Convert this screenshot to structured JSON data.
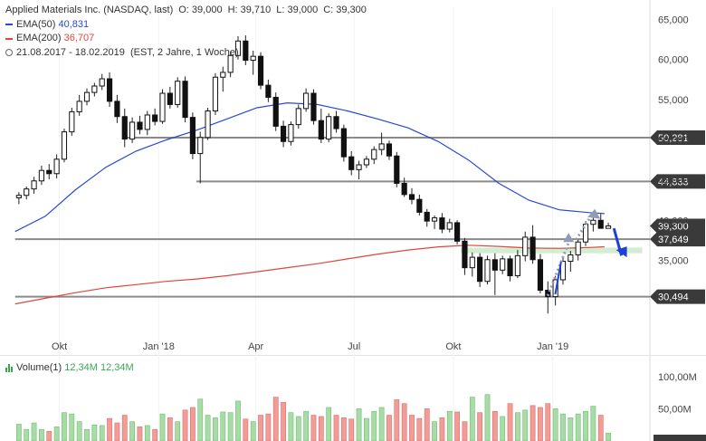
{
  "legend": {
    "title": "Applied Materials Inc. (NASDAQ, last)",
    "ohlc": {
      "o_label": "O:",
      "o": "39,000",
      "h_label": "H:",
      "h": "39,710",
      "l_label": "L:",
      "l": "39,000",
      "c_label": "C:",
      "c": "39,300"
    },
    "ema50_label": "EMA(50)",
    "ema50_value": "40,831",
    "ema200_label": "EMA(200)",
    "ema200_value": "36,707",
    "range": "21.08.2017 - 18.02.2019",
    "settings": "(EST, 2 Jahre, 1 Woche)"
  },
  "volume_legend": {
    "label": "Volume(1)",
    "value1": "12,34M",
    "value2": "12,34M"
  },
  "colors": {
    "up": "#3aa655",
    "down": "#e0463c",
    "ema50": "#2a47d6",
    "ema200": "#e0463c",
    "hline": "#8a8a8a",
    "vol_up": "#a9dba8",
    "vol_down": "#f29b97",
    "axis_label_bg": "#3a3a3a",
    "zone": "#c9ebc9",
    "arrow_blue": "#1f3fd6",
    "arrow_gray": "#8f9bb8"
  },
  "chart_data": {
    "type": "candlestick",
    "title": "Applied Materials Inc. (NASDAQ, last)",
    "x_start": "21.08.2017",
    "x_end": "18.02.2019",
    "interval": "1 Woche",
    "y_axis": {
      "ticks": [
        "65,000",
        "60,000",
        "55,000",
        "50,000",
        "45,000",
        "40,000",
        "35,000"
      ],
      "tick_values": [
        65,
        60,
        55,
        50,
        45,
        40,
        35
      ],
      "ylim": [
        25.5,
        66.5
      ],
      "position": "right"
    },
    "x_axis": {
      "ticks": [
        "Okt",
        "Jan '18",
        "Apr",
        "Jul",
        "Okt",
        "Jan '19"
      ],
      "tick_dates": [
        "2017-10-01",
        "2018-01-01",
        "2018-04-01",
        "2018-07-01",
        "2018-10-01",
        "2019-01-01"
      ]
    },
    "horizontal_levels": [
      {
        "value": 50.281,
        "label": "50,281",
        "from_date": "2017-12-01"
      },
      {
        "value": 44.833,
        "label": "44,833",
        "from_date": "2018-02-05"
      },
      {
        "value": 37.649,
        "label": "37,649",
        "from_date": "2017-08-21"
      },
      {
        "value": 30.494,
        "label": "30,494",
        "from_date": "2017-08-21"
      }
    ],
    "last_price": {
      "value": 39.3,
      "label": "39,300"
    },
    "support_zone": {
      "from": 35.9,
      "to": 36.6,
      "from_date": "2018-10-08",
      "to_date": "2019-03-25"
    },
    "candles": [
      [
        "2017-08-21",
        42.8,
        43.5,
        42.0,
        43.1
      ],
      [
        "2017-08-28",
        43.1,
        44.2,
        42.6,
        43.9
      ],
      [
        "2017-09-04",
        43.9,
        45.4,
        43.3,
        44.9
      ],
      [
        "2017-09-11",
        44.9,
        46.8,
        44.4,
        46.2
      ],
      [
        "2017-09-18",
        46.2,
        47.0,
        45.1,
        45.8
      ],
      [
        "2017-09-25",
        45.8,
        48.2,
        45.2,
        47.6
      ],
      [
        "2017-10-02",
        47.6,
        51.4,
        47.2,
        51.0
      ],
      [
        "2017-10-09",
        51.0,
        54.0,
        50.5,
        53.5
      ],
      [
        "2017-10-16",
        53.5,
        55.6,
        53.0,
        54.8
      ],
      [
        "2017-10-23",
        54.8,
        56.4,
        54.3,
        55.9
      ],
      [
        "2017-10-30",
        55.9,
        57.1,
        55.4,
        56.7
      ],
      [
        "2017-11-06",
        56.7,
        58.2,
        56.2,
        57.6
      ],
      [
        "2017-11-13",
        57.6,
        58.4,
        54.1,
        54.8
      ],
      [
        "2017-11-20",
        54.8,
        55.6,
        52.1,
        52.9
      ],
      [
        "2017-11-27",
        52.9,
        53.9,
        49.1,
        50.1
      ],
      [
        "2017-12-04",
        50.1,
        52.8,
        49.6,
        52.2
      ],
      [
        "2017-12-11",
        52.2,
        53.0,
        50.7,
        51.3
      ],
      [
        "2017-12-18",
        51.3,
        53.6,
        50.6,
        53.1
      ],
      [
        "2017-12-25",
        53.1,
        53.9,
        51.8,
        52.3
      ],
      [
        "2018-01-01",
        52.3,
        56.3,
        52.0,
        55.8
      ],
      [
        "2018-01-08",
        55.8,
        56.6,
        53.9,
        54.4
      ],
      [
        "2018-01-15",
        54.4,
        57.8,
        54.0,
        57.3
      ],
      [
        "2018-01-22",
        57.3,
        57.9,
        52.2,
        52.8
      ],
      [
        "2018-01-29",
        52.8,
        53.4,
        47.6,
        48.3
      ],
      [
        "2018-02-05",
        48.3,
        51.0,
        44.6,
        50.3
      ],
      [
        "2018-02-12",
        50.3,
        54.0,
        50.0,
        53.6
      ],
      [
        "2018-02-19",
        53.6,
        58.3,
        53.1,
        57.8
      ],
      [
        "2018-02-26",
        57.8,
        59.1,
        56.0,
        58.4
      ],
      [
        "2018-03-05",
        58.4,
        61.0,
        57.8,
        60.5
      ],
      [
        "2018-03-12",
        60.5,
        62.9,
        60.0,
        62.3
      ],
      [
        "2018-03-19",
        62.3,
        63.0,
        59.3,
        59.9
      ],
      [
        "2018-03-26",
        59.9,
        61.1,
        58.1,
        60.4
      ],
      [
        "2018-04-02",
        60.4,
        60.9,
        56.3,
        56.8
      ],
      [
        "2018-04-09",
        56.8,
        57.5,
        54.7,
        55.3
      ],
      [
        "2018-04-16",
        55.3,
        55.9,
        51.1,
        51.7
      ],
      [
        "2018-04-23",
        51.7,
        52.4,
        49.1,
        49.8
      ],
      [
        "2018-04-30",
        49.8,
        52.3,
        49.3,
        51.9
      ],
      [
        "2018-05-07",
        51.9,
        54.4,
        51.4,
        53.9
      ],
      [
        "2018-05-14",
        53.9,
        56.4,
        53.5,
        55.8
      ],
      [
        "2018-05-21",
        55.8,
        56.3,
        51.9,
        52.4
      ],
      [
        "2018-05-28",
        52.4,
        53.9,
        49.6,
        50.1
      ],
      [
        "2018-06-04",
        50.1,
        53.3,
        49.7,
        52.9
      ],
      [
        "2018-06-11",
        52.9,
        53.6,
        50.9,
        51.4
      ],
      [
        "2018-06-18",
        51.4,
        51.9,
        47.3,
        47.9
      ],
      [
        "2018-06-25",
        47.9,
        48.6,
        45.6,
        46.3
      ],
      [
        "2018-07-02",
        46.3,
        47.4,
        45.1,
        46.9
      ],
      [
        "2018-07-09",
        46.9,
        48.0,
        46.5,
        47.6
      ],
      [
        "2018-07-16",
        47.6,
        49.2,
        47.0,
        48.8
      ],
      [
        "2018-07-23",
        48.8,
        50.9,
        48.1,
        49.5
      ],
      [
        "2018-07-30",
        49.5,
        49.9,
        47.5,
        48.0
      ],
      [
        "2018-08-06",
        48.0,
        48.5,
        44.1,
        44.6
      ],
      [
        "2018-08-13",
        44.6,
        45.3,
        42.9,
        43.2
      ],
      [
        "2018-08-20",
        43.2,
        44.0,
        42.0,
        42.6
      ],
      [
        "2018-08-27",
        42.6,
        43.2,
        40.6,
        41.0
      ],
      [
        "2018-09-03",
        41.0,
        41.4,
        39.2,
        39.9
      ],
      [
        "2018-09-10",
        39.9,
        40.6,
        38.9,
        40.3
      ],
      [
        "2018-09-17",
        40.3,
        40.9,
        38.4,
        38.9
      ],
      [
        "2018-09-24",
        38.9,
        40.2,
        38.5,
        39.7
      ],
      [
        "2018-10-01",
        39.7,
        40.0,
        37.0,
        37.4
      ],
      [
        "2018-10-08",
        37.4,
        37.8,
        33.2,
        34.1
      ],
      [
        "2018-10-15",
        34.1,
        36.0,
        33.0,
        35.4
      ],
      [
        "2018-10-22",
        35.4,
        35.9,
        31.7,
        32.4
      ],
      [
        "2018-10-29",
        32.4,
        35.6,
        32.0,
        35.1
      ],
      [
        "2018-11-05",
        35.1,
        35.9,
        30.7,
        33.8
      ],
      [
        "2018-11-12",
        33.8,
        35.6,
        33.3,
        35.2
      ],
      [
        "2018-11-19",
        35.2,
        35.6,
        32.4,
        33.1
      ],
      [
        "2018-11-26",
        33.1,
        36.3,
        32.8,
        35.6
      ],
      [
        "2018-12-03",
        35.6,
        38.6,
        34.9,
        37.9
      ],
      [
        "2018-12-10",
        37.9,
        39.4,
        34.6,
        35.1
      ],
      [
        "2018-12-17",
        35.1,
        35.8,
        30.9,
        31.3
      ],
      [
        "2018-12-24",
        31.3,
        32.4,
        28.4,
        30.5
      ],
      [
        "2018-12-31",
        30.5,
        33.1,
        29.4,
        32.6
      ],
      [
        "2019-01-07",
        32.6,
        35.4,
        32.0,
        34.9
      ],
      [
        "2019-01-14",
        34.9,
        36.2,
        33.6,
        35.7
      ],
      [
        "2019-01-21",
        35.7,
        37.6,
        35.0,
        37.3
      ],
      [
        "2019-01-28",
        37.3,
        39.9,
        36.8,
        39.5
      ],
      [
        "2019-02-04",
        39.5,
        40.4,
        38.6,
        40.0
      ],
      [
        "2019-02-11",
        40.0,
        40.8,
        39.2,
        39.0
      ],
      [
        "2019-02-18",
        39.0,
        39.71,
        39.0,
        39.3
      ]
    ],
    "ema50": [
      [
        "2017-08-21",
        38.6
      ],
      [
        "2017-09-18",
        40.5
      ],
      [
        "2017-10-16",
        43.8
      ],
      [
        "2017-11-13",
        46.6
      ],
      [
        "2017-12-11",
        48.6
      ],
      [
        "2018-01-08",
        50.0
      ],
      [
        "2018-02-05",
        51.2
      ],
      [
        "2018-03-05",
        52.6
      ],
      [
        "2018-04-02",
        54.0
      ],
      [
        "2018-04-30",
        54.6
      ],
      [
        "2018-05-28",
        54.4
      ],
      [
        "2018-06-25",
        53.6
      ],
      [
        "2018-07-23",
        52.6
      ],
      [
        "2018-08-20",
        51.5
      ],
      [
        "2018-09-17",
        49.8
      ],
      [
        "2018-10-15",
        47.5
      ],
      [
        "2018-11-12",
        44.6
      ],
      [
        "2018-12-10",
        42.5
      ],
      [
        "2019-01-07",
        41.3
      ],
      [
        "2019-02-04",
        40.95
      ],
      [
        "2019-02-18",
        40.831
      ]
    ],
    "ema200": [
      [
        "2017-08-21",
        29.6
      ],
      [
        "2017-09-18",
        30.3
      ],
      [
        "2017-10-16",
        31.0
      ],
      [
        "2017-11-13",
        31.6
      ],
      [
        "2017-12-11",
        32.0
      ],
      [
        "2018-01-08",
        32.4
      ],
      [
        "2018-02-05",
        32.7
      ],
      [
        "2018-03-05",
        33.1
      ],
      [
        "2018-04-02",
        33.6
      ],
      [
        "2018-04-30",
        34.1
      ],
      [
        "2018-05-28",
        34.6
      ],
      [
        "2018-06-25",
        35.2
      ],
      [
        "2018-07-23",
        35.8
      ],
      [
        "2018-08-20",
        36.3
      ],
      [
        "2018-09-17",
        36.7
      ],
      [
        "2018-10-15",
        36.9
      ],
      [
        "2018-11-12",
        36.75
      ],
      [
        "2018-12-10",
        36.55
      ],
      [
        "2019-01-07",
        36.5
      ],
      [
        "2019-02-04",
        36.62
      ],
      [
        "2019-02-18",
        36.707
      ]
    ],
    "volume": {
      "label": "Volume(1)",
      "ticks": [
        "100,00M",
        "50,00M"
      ],
      "tick_values": [
        100,
        50
      ],
      "ylim": [
        0,
        125
      ],
      "values": [
        26,
        18,
        28,
        18,
        15,
        22,
        44,
        42,
        30,
        18,
        25,
        24,
        35,
        28,
        40,
        30,
        22,
        24,
        18,
        42,
        36,
        30,
        48,
        52,
        65,
        40,
        36,
        45,
        44,
        62,
        34,
        30,
        40,
        42,
        68,
        60,
        44,
        38,
        46,
        40,
        38,
        52,
        40,
        36,
        34,
        50,
        35,
        46,
        52,
        40,
        64,
        58,
        40,
        35,
        50,
        30,
        36,
        46,
        45,
        30,
        68,
        44,
        72,
        46,
        38,
        58,
        44,
        48,
        55,
        52,
        58,
        50,
        42,
        36,
        42,
        46,
        54,
        40,
        12.34
      ]
    }
  }
}
